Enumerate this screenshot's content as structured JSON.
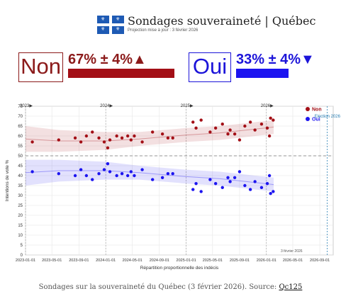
{
  "header": {
    "title": "Sondages souveraineté | Québec",
    "subtitle": "Projection mise à jour : 3 février 2026"
  },
  "summary": {
    "non": {
      "label": "Non",
      "value": "67% ± 4%▲",
      "share": 0.67,
      "color": "#a30f16"
    },
    "oui": {
      "label": "Oui",
      "value": "33% ± 4%▼",
      "share": 0.33,
      "color": "#1c14f0"
    }
  },
  "caption": {
    "text": "Sondages sur la souveraineté du Québec (3 février 2026). Source: ",
    "source": "Qc125"
  },
  "chart_data": {
    "type": "scatter",
    "xlabel": "Répartition proportionnelle des indécis",
    "ylabel": "Intentions de vote %",
    "xlim": [
      "2023-01-01",
      "2026-11-01"
    ],
    "ylim": [
      0,
      75
    ],
    "x_ticks": [
      "2023-01-01",
      "2023-05-01",
      "2023-09-01",
      "2024-01-01",
      "2024-05-01",
      "2024-09-01",
      "2025-01-01",
      "2025-05-01",
      "2025-09-01",
      "2026-01-01",
      "2026-05-01",
      "2026-09-01"
    ],
    "y_ticks": [
      0,
      5,
      10,
      15,
      20,
      25,
      30,
      35,
      40,
      45,
      50,
      55,
      60,
      65,
      70,
      75
    ],
    "year_markers": [
      {
        "label": "2023▶",
        "x": "2023-01-01"
      },
      {
        "label": "2024▶",
        "x": "2024-01-01"
      },
      {
        "label": "2025▶",
        "x": "2025-01-01"
      },
      {
        "label": "2026▶",
        "x": "2026-01-01"
      }
    ],
    "reference_line": 50,
    "annotations": [
      {
        "text": "Election 2026",
        "x": "2026-10-05"
      },
      {
        "text": "3 février 2026",
        "x": "2026-02-03"
      }
    ],
    "grid": true,
    "legend": "top-right",
    "series": [
      {
        "name": "Non",
        "color": "#a30f16",
        "points": [
          [
            "2023-02-01",
            57
          ],
          [
            "2023-06-01",
            58
          ],
          [
            "2023-08-15",
            59
          ],
          [
            "2023-09-10",
            57
          ],
          [
            "2023-10-05",
            60
          ],
          [
            "2023-11-01",
            62
          ],
          [
            "2023-12-01",
            59
          ],
          [
            "2023-12-25",
            57
          ],
          [
            "2024-01-10",
            54
          ],
          [
            "2024-01-20",
            58
          ],
          [
            "2024-02-20",
            60
          ],
          [
            "2024-03-15",
            59
          ],
          [
            "2024-04-10",
            60
          ],
          [
            "2024-04-25",
            58
          ],
          [
            "2024-05-10",
            60
          ],
          [
            "2024-06-15",
            57
          ],
          [
            "2024-08-01",
            62
          ],
          [
            "2024-09-15",
            61
          ],
          [
            "2024-10-10",
            59
          ],
          [
            "2024-11-01",
            59
          ],
          [
            "2025-02-01",
            67
          ],
          [
            "2025-02-15",
            64
          ],
          [
            "2025-03-10",
            68
          ],
          [
            "2025-04-20",
            62
          ],
          [
            "2025-05-15",
            64
          ],
          [
            "2025-06-15",
            66
          ],
          [
            "2025-07-10",
            61
          ],
          [
            "2025-07-20",
            63
          ],
          [
            "2025-08-10",
            61
          ],
          [
            "2025-09-01",
            58
          ],
          [
            "2025-09-25",
            65
          ],
          [
            "2025-10-20",
            67
          ],
          [
            "2025-11-10",
            63
          ],
          [
            "2025-12-10",
            66
          ],
          [
            "2026-01-05",
            64
          ],
          [
            "2026-01-15",
            60
          ],
          [
            "2026-01-20",
            69
          ],
          [
            "2026-02-01",
            68
          ]
        ],
        "band": [
          [
            "2023-01-01",
            65,
            52
          ],
          [
            "2023-06-01",
            63,
            52
          ],
          [
            "2024-01-01",
            62,
            53
          ],
          [
            "2024-06-01",
            62,
            55
          ],
          [
            "2025-01-01",
            64,
            57
          ],
          [
            "2025-06-01",
            65,
            58
          ],
          [
            "2026-02-03",
            68,
            61
          ]
        ]
      },
      {
        "name": "Oui",
        "color": "#1c14f0",
        "points": [
          [
            "2023-02-01",
            42
          ],
          [
            "2023-06-01",
            41
          ],
          [
            "2023-08-15",
            40
          ],
          [
            "2023-09-10",
            43
          ],
          [
            "2023-10-05",
            40
          ],
          [
            "2023-11-01",
            38
          ],
          [
            "2023-12-01",
            41
          ],
          [
            "2023-12-25",
            43
          ],
          [
            "2024-01-10",
            46
          ],
          [
            "2024-01-20",
            42
          ],
          [
            "2024-02-20",
            40
          ],
          [
            "2024-03-15",
            41
          ],
          [
            "2024-04-10",
            40
          ],
          [
            "2024-04-25",
            42
          ],
          [
            "2024-05-10",
            40
          ],
          [
            "2024-06-15",
            43
          ],
          [
            "2024-08-01",
            38
          ],
          [
            "2024-09-15",
            39
          ],
          [
            "2024-10-10",
            41
          ],
          [
            "2024-11-01",
            41
          ],
          [
            "2025-02-01",
            33
          ],
          [
            "2025-02-15",
            36
          ],
          [
            "2025-03-10",
            32
          ],
          [
            "2025-04-20",
            38
          ],
          [
            "2025-05-15",
            36
          ],
          [
            "2025-06-15",
            34
          ],
          [
            "2025-07-10",
            39
          ],
          [
            "2025-07-20",
            37
          ],
          [
            "2025-08-10",
            39
          ],
          [
            "2025-09-01",
            42
          ],
          [
            "2025-09-25",
            35
          ],
          [
            "2025-10-20",
            33
          ],
          [
            "2025-11-10",
            37
          ],
          [
            "2025-12-10",
            34
          ],
          [
            "2026-01-05",
            36
          ],
          [
            "2026-01-15",
            40
          ],
          [
            "2026-01-20",
            31
          ],
          [
            "2026-02-01",
            32
          ]
        ],
        "band": [
          [
            "2023-01-01",
            48,
            35
          ],
          [
            "2023-06-01",
            48,
            37
          ],
          [
            "2024-01-01",
            47,
            38
          ],
          [
            "2024-06-01",
            45,
            38
          ],
          [
            "2025-01-01",
            43,
            36
          ],
          [
            "2025-06-01",
            42,
            35
          ],
          [
            "2026-02-03",
            39,
            32
          ]
        ]
      }
    ]
  }
}
